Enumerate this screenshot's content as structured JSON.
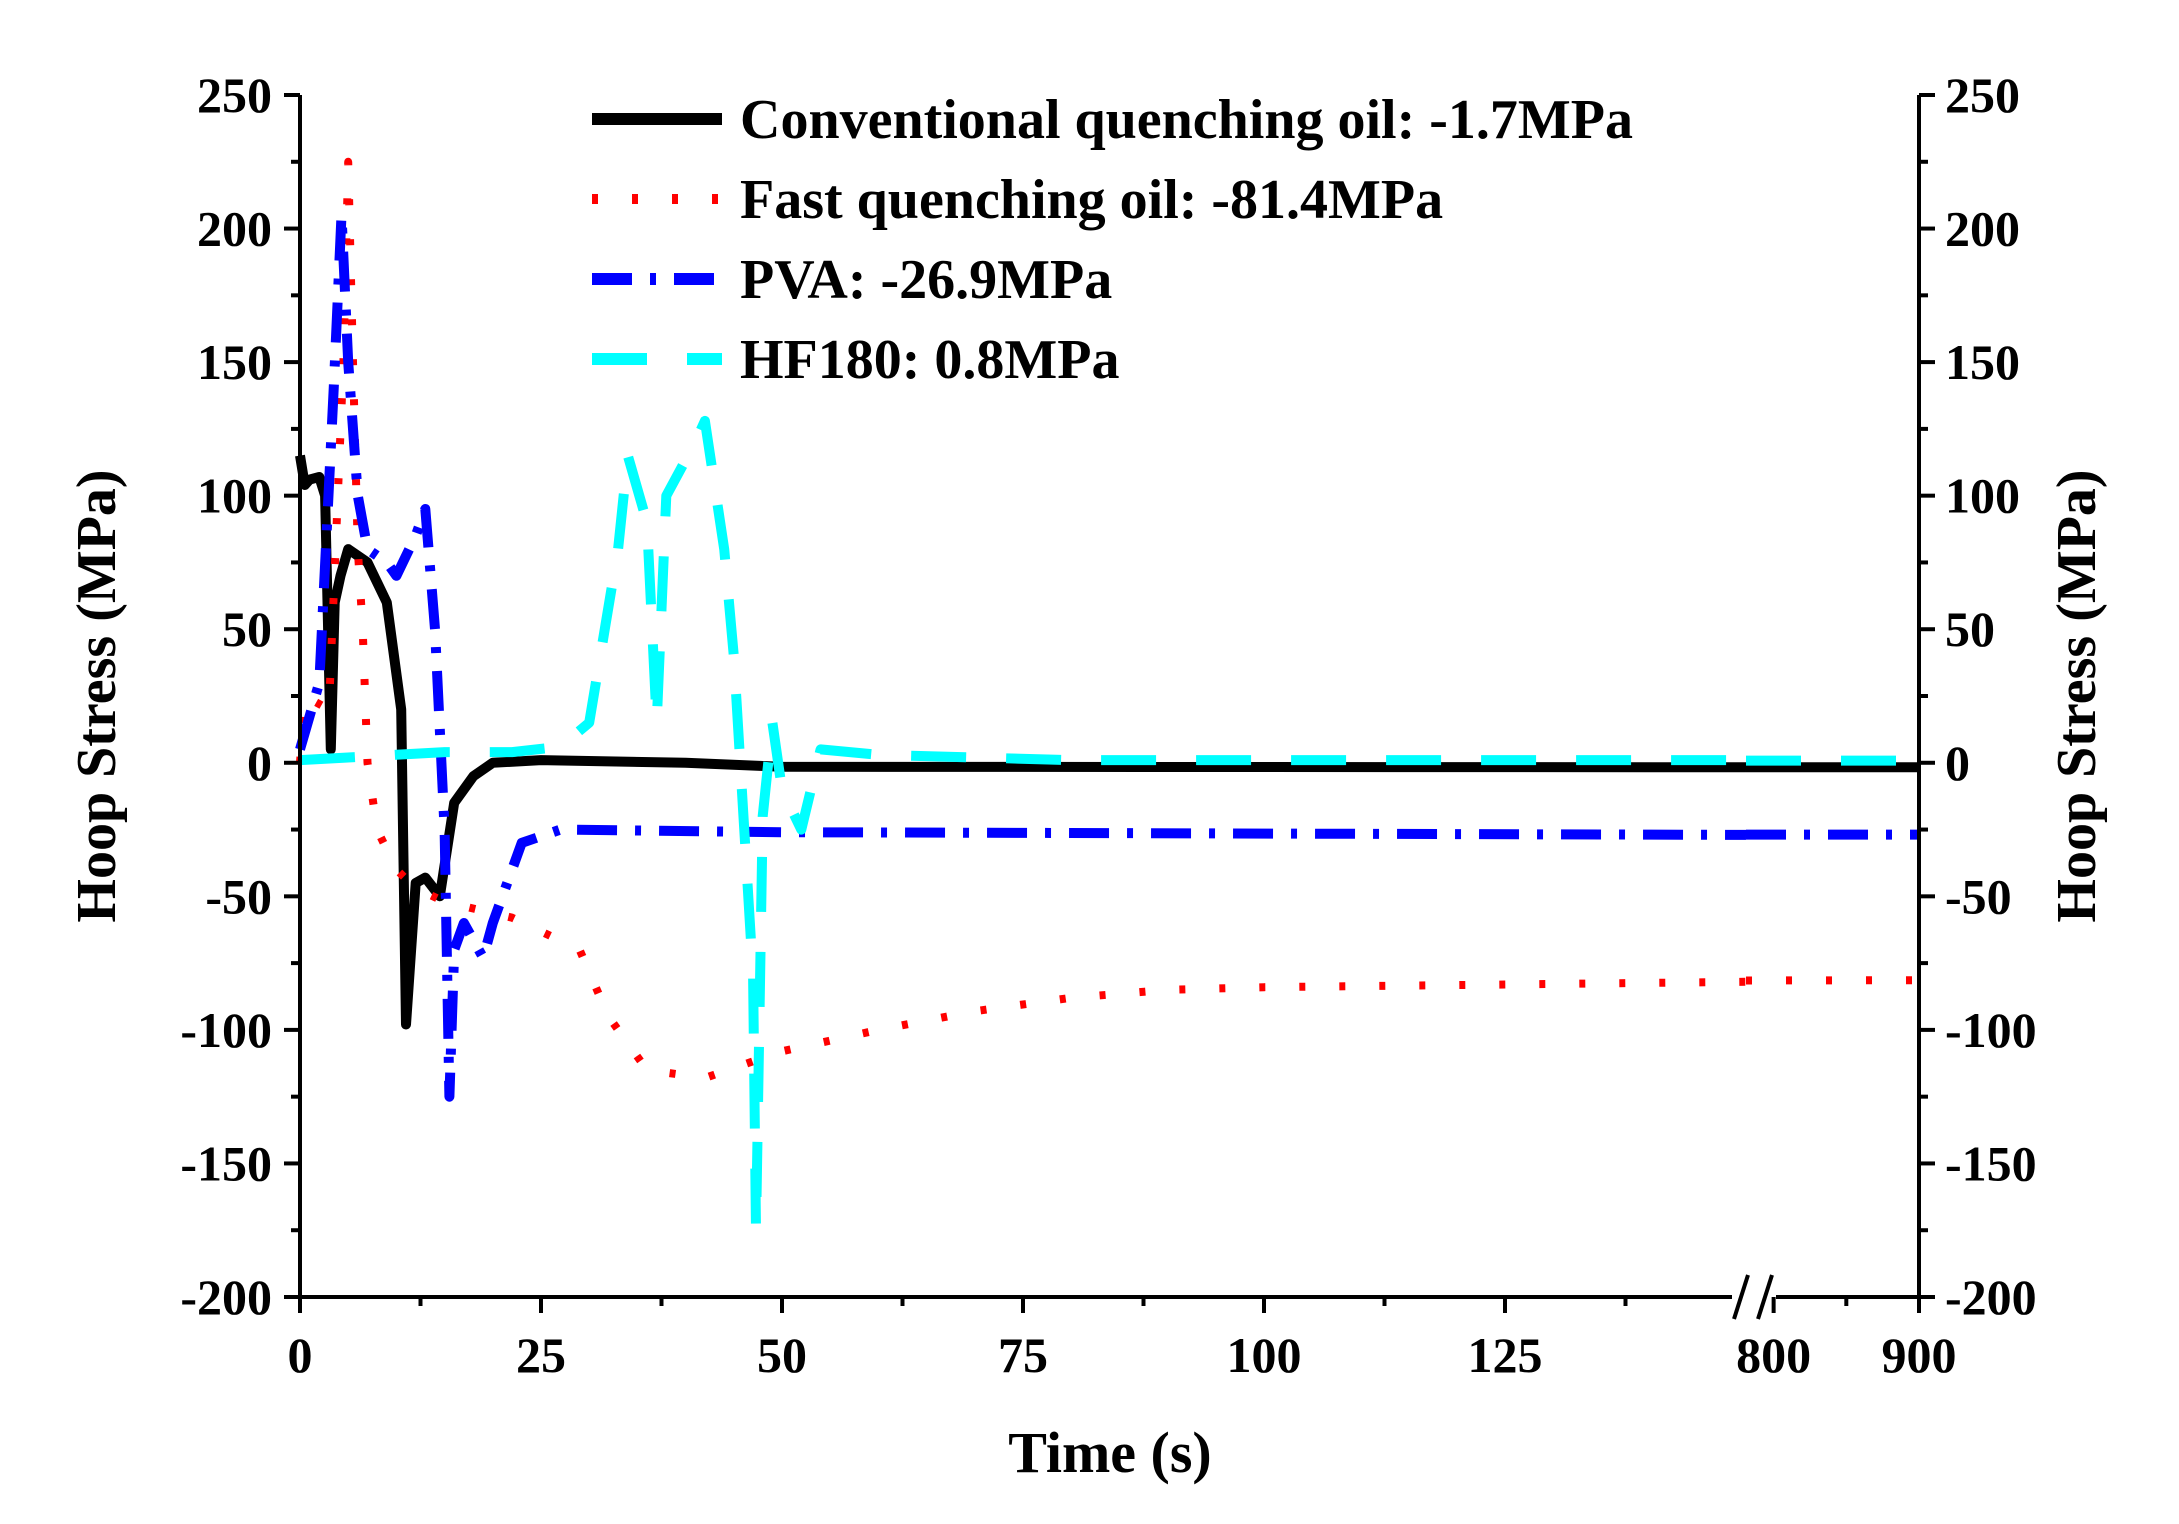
{
  "chart_data": {
    "type": "line",
    "xlabel": "Time (s)",
    "ylabel_left": "Hoop Stress (MPa)",
    "ylabel_right": "Hoop Stress (MPa)",
    "ylim": [
      -200,
      250
    ],
    "yticks": [
      -200,
      -150,
      -100,
      -50,
      0,
      50,
      100,
      150,
      200,
      250
    ],
    "x_axis_break": {
      "segments": [
        [
          0,
          150
        ],
        [
          781,
          900
        ]
      ]
    },
    "xticks": [
      0,
      25,
      50,
      75,
      100,
      125,
      800,
      900
    ],
    "legend_position": "top-center",
    "series": [
      {
        "name": "Conventional quenching oil: -1.7MPa",
        "color": "#000000",
        "style": "solid",
        "x": [
          0,
          0.5,
          1,
          2,
          2.6,
          3.2,
          3.6,
          4.2,
          5,
          7,
          9,
          10.5,
          11,
          12,
          13,
          14.5,
          16,
          18,
          20,
          25,
          40,
          50,
          150,
          781,
          900
        ],
        "y": [
          115,
          104,
          106,
          107,
          100,
          5,
          60,
          70,
          80,
          75,
          60,
          20,
          -98,
          -45,
          -43,
          -50,
          -15,
          -5,
          0,
          1,
          0,
          -1.5,
          -1.7,
          -1.7,
          -1.7
        ]
      },
      {
        "name": "Fast quenching oil: -81.4MPa",
        "color": "#ff0000",
        "style": "dotted",
        "x": [
          0,
          0.5,
          3,
          4.5,
          5,
          5.5,
          6,
          6.5,
          7,
          8,
          10,
          12,
          15,
          22,
          29,
          32,
          36,
          42,
          50,
          60,
          70,
          80,
          90,
          100,
          150,
          781,
          900
        ],
        "y": [
          0,
          25,
          20,
          150,
          225,
          150,
          80,
          50,
          0,
          -25,
          -40,
          -47,
          -52,
          -58,
          -70,
          -95,
          -115,
          -118,
          -108,
          -100,
          -93,
          -88,
          -85,
          -84,
          -82,
          -81.5,
          -81.4
        ]
      },
      {
        "name": "PVA: -26.9MPa",
        "color": "#0000ff",
        "style": "dashdot",
        "x": [
          0,
          2,
          3.5,
          4.3,
          5,
          6,
          7,
          9,
          10,
          12,
          13,
          14,
          15,
          15.5,
          16,
          17,
          19,
          20,
          23,
          27,
          50,
          150,
          781,
          900
        ],
        "y": [
          5,
          30,
          140,
          205,
          150,
          100,
          80,
          75,
          70,
          85,
          95,
          50,
          -25,
          -125,
          -70,
          -60,
          -73,
          -60,
          -30,
          -25,
          -26,
          -27,
          -26.9,
          -26.9
        ]
      },
      {
        "name": "HF180: 0.8MPa",
        "color": "#00ffff",
        "style": "dashed",
        "x": [
          0,
          10,
          15,
          22,
          27,
          30,
          33,
          34,
          36,
          37,
          38,
          41,
          42,
          44,
          45,
          47,
          47.3,
          48,
          49,
          50,
          52,
          54,
          60,
          80,
          150,
          781,
          900
        ],
        "y": [
          1,
          3,
          4,
          4,
          6,
          15,
          80,
          115,
          90,
          15,
          100,
          120,
          128,
          80,
          40,
          -80,
          -175,
          -20,
          15,
          -10,
          -25,
          5,
          3,
          1,
          1,
          0.8,
          0.8
        ]
      }
    ]
  }
}
